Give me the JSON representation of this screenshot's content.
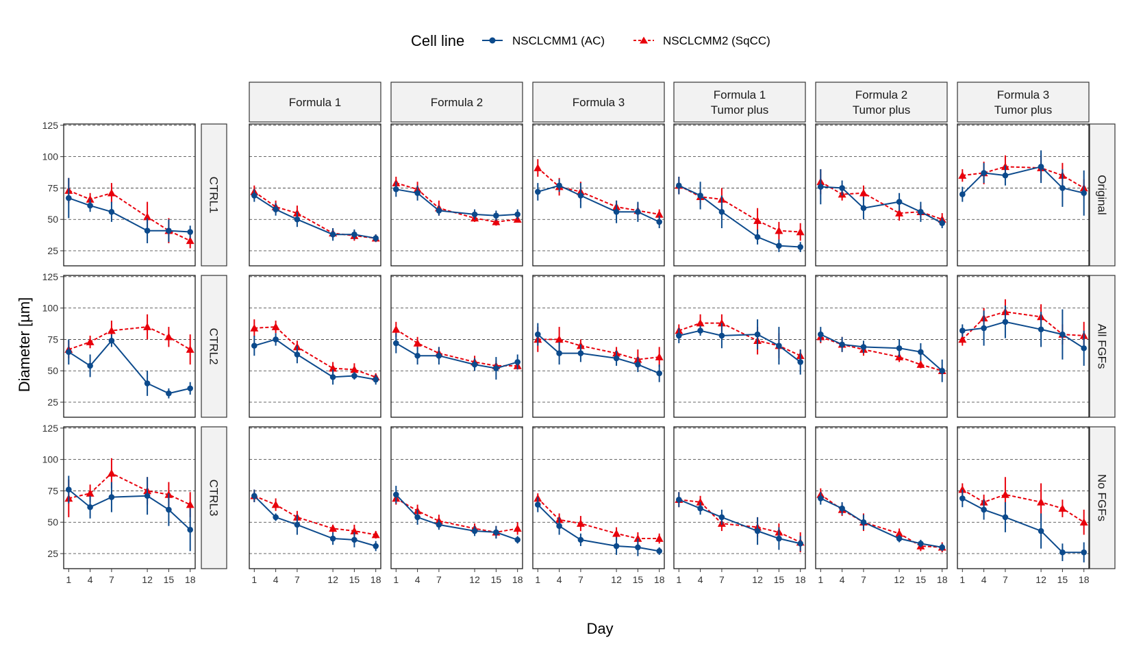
{
  "chart_data": {
    "type": "line",
    "legend": {
      "title": "Cell line",
      "position": "top"
    },
    "series_styles": [
      {
        "name": "NSCLCMM1 (AC)",
        "color": "#0c4a8c",
        "marker": "circle",
        "line": "solid"
      },
      {
        "name": "NSCLCMM2 (SqCC)",
        "color": "#e8000b",
        "marker": "triangle",
        "line": "dashed"
      }
    ],
    "xlabel": "Day",
    "ylabel": "Diameter [µm]",
    "x": [
      1,
      4,
      7,
      12,
      15,
      18
    ],
    "x_ticks": [
      "1",
      "4",
      "7",
      "12",
      "15",
      "18"
    ],
    "y_ticks": [
      "25",
      "50",
      "75",
      "100",
      "125"
    ],
    "ylim": [
      13,
      126
    ],
    "grid": "horizontal dashed",
    "columns": [
      "",
      "Formula 1",
      "Formula 2",
      "Formula 3",
      "Formula 1\nTumor plus",
      "Formula 2\nTumor plus",
      "Formula 3\nTumor plus"
    ],
    "rows": [
      "Original",
      "All FGFs",
      "No FGFs"
    ],
    "control_labels": [
      "CTRL1",
      "CTRL2",
      "CTRL3"
    ],
    "panels": [
      [
        {
          "series": [
            {
              "values": [
                67,
                61,
                56,
                41,
                41,
                40
              ],
              "err": [
                16,
                5,
                8,
                10,
                9,
                5
              ]
            },
            {
              "values": [
                73,
                66,
                71,
                52,
                41,
                33
              ],
              "err": [
                10,
                5,
                8,
                12,
                10,
                6
              ]
            }
          ]
        },
        {
          "series": [
            {
              "values": [
                69,
                58,
                50,
                38,
                38,
                35
              ],
              "err": [
                5,
                5,
                6,
                5,
                4,
                3
              ]
            },
            {
              "values": [
                72,
                60,
                55,
                39,
                37,
                35
              ],
              "err": [
                5,
                5,
                6,
                4,
                4,
                3
              ]
            }
          ]
        },
        {
          "series": [
            {
              "values": [
                74,
                71,
                57,
                54,
                53,
                54
              ],
              "err": [
                6,
                6,
                4,
                4,
                4,
                4
              ]
            },
            {
              "values": [
                79,
                74,
                59,
                51,
                48,
                50
              ],
              "err": [
                5,
                6,
                6,
                3,
                3,
                2
              ]
            }
          ]
        },
        {
          "series": [
            {
              "values": [
                72,
                77,
                69,
                56,
                56,
                48
              ],
              "err": [
                7,
                5,
                10,
                9,
                8,
                5
              ]
            },
            {
              "values": [
                91,
                76,
                72,
                60,
                57,
                54
              ],
              "err": [
                7,
                7,
                8,
                5,
                6,
                4
              ]
            }
          ]
        },
        {
          "series": [
            {
              "values": [
                77,
                69,
                56,
                36,
                29,
                28
              ],
              "err": [
                7,
                11,
                13,
                6,
                5,
                4
              ]
            },
            {
              "values": [
                77,
                68,
                66,
                49,
                41,
                40
              ],
              "err": [
                7,
                5,
                9,
                10,
                7,
                7
              ]
            }
          ]
        },
        {
          "series": [
            {
              "values": [
                76,
                75,
                59,
                64,
                56,
                47
              ],
              "err": [
                14,
                6,
                9,
                7,
                8,
                4
              ]
            },
            {
              "values": [
                80,
                70,
                71,
                55,
                56,
                50
              ],
              "err": [
                10,
                5,
                6,
                6,
                5,
                5
              ]
            }
          ]
        },
        {
          "series": [
            {
              "values": [
                70,
                87,
                85,
                92,
                75,
                71
              ],
              "err": [
                6,
                8,
                8,
                13,
                15,
                18
              ]
            },
            {
              "values": [
                85,
                87,
                92,
                91,
                85,
                75
              ],
              "err": [
                5,
                9,
                9,
                10,
                10,
                7
              ]
            }
          ]
        }
      ],
      [
        {
          "series": [
            {
              "values": [
                65,
                54,
                74,
                40,
                32,
                36
              ],
              "err": [
                10,
                9,
                5,
                10,
                4,
                5
              ]
            },
            {
              "values": [
                67,
                73,
                82,
                85,
                77,
                67
              ],
              "err": [
                7,
                5,
                8,
                10,
                8,
                12
              ]
            }
          ]
        },
        {
          "series": [
            {
              "values": [
                70,
                75,
                63,
                45,
                46,
                43
              ],
              "err": [
                8,
                5,
                7,
                6,
                3,
                4
              ]
            },
            {
              "values": [
                84,
                85,
                69,
                52,
                51,
                45
              ],
              "err": [
                7,
                5,
                5,
                5,
                5,
                3
              ]
            }
          ]
        },
        {
          "series": [
            {
              "values": [
                72,
                62,
                62,
                55,
                52,
                57
              ],
              "err": [
                8,
                7,
                7,
                5,
                9,
                6
              ]
            },
            {
              "values": [
                83,
                72,
                64,
                57,
                54,
                54
              ],
              "err": [
                6,
                5,
                5,
                5,
                4,
                3
              ]
            }
          ]
        },
        {
          "series": [
            {
              "values": [
                79,
                64,
                64,
                60,
                55,
                48
              ],
              "err": [
                9,
                9,
                7,
                6,
                6,
                7
              ]
            },
            {
              "values": [
                75,
                75,
                70,
                64,
                59,
                61
              ],
              "err": [
                10,
                10,
                5,
                5,
                8,
                8
              ]
            }
          ]
        },
        {
          "series": [
            {
              "values": [
                78,
                82,
                78,
                79,
                70,
                57
              ],
              "err": [
                6,
                4,
                10,
                12,
                15,
                10
              ]
            },
            {
              "values": [
                82,
                88,
                88,
                74,
                70,
                62
              ],
              "err": [
                5,
                7,
                7,
                11,
                10,
                5
              ]
            }
          ]
        },
        {
          "series": [
            {
              "values": [
                79,
                71,
                69,
                68,
                65,
                50
              ],
              "err": [
                6,
                6,
                5,
                7,
                7,
                9
              ]
            },
            {
              "values": [
                77,
                71,
                67,
                61,
                55,
                50
              ],
              "err": [
                5,
                6,
                5,
                4,
                3,
                3
              ]
            }
          ]
        },
        {
          "series": [
            {
              "values": [
                82,
                84,
                89,
                83,
                79,
                68
              ],
              "err": [
                5,
                14,
                13,
                14,
                20,
                14
              ]
            },
            {
              "values": [
                75,
                92,
                97,
                93,
                79,
                78
              ],
              "err": [
                5,
                8,
                10,
                10,
                8,
                11
              ]
            }
          ]
        }
      ],
      [
        {
          "series": [
            {
              "values": [
                76,
                62,
                70,
                71,
                60,
                44
              ],
              "err": [
                11,
                9,
                12,
                15,
                13,
                17
              ]
            },
            {
              "values": [
                69,
                73,
                89,
                75,
                72,
                64
              ],
              "err": [
                15,
                7,
                12,
                11,
                10,
                10
              ]
            }
          ]
        },
        {
          "series": [
            {
              "values": [
                71,
                54,
                48,
                37,
                36,
                31
              ],
              "err": [
                5,
                3,
                8,
                5,
                6,
                4
              ]
            },
            {
              "values": [
                71,
                64,
                54,
                45,
                43,
                40
              ],
              "err": [
                5,
                5,
                5,
                3,
                5,
                3
              ]
            }
          ]
        },
        {
          "series": [
            {
              "values": [
                72,
                54,
                48,
                43,
                42,
                36
              ],
              "err": [
                7,
                6,
                4,
                4,
                5,
                3
              ]
            },
            {
              "values": [
                69,
                59,
                51,
                45,
                42,
                45
              ],
              "err": [
                5,
                5,
                5,
                4,
                5,
                5
              ]
            }
          ]
        },
        {
          "series": [
            {
              "values": [
                64,
                47,
                36,
                31,
                30,
                27
              ],
              "err": [
                6,
                7,
                5,
                7,
                7,
                3
              ]
            },
            {
              "values": [
                69,
                52,
                49,
                41,
                37,
                37
              ],
              "err": [
                4,
                5,
                6,
                5,
                5,
                4
              ]
            }
          ]
        },
        {
          "series": [
            {
              "values": [
                68,
                61,
                54,
                43,
                37,
                33
              ],
              "err": [
                6,
                5,
                6,
                11,
                9,
                6
              ]
            },
            {
              "values": [
                68,
                66,
                49,
                46,
                42,
                34
              ],
              "err": [
                6,
                5,
                6,
                8,
                7,
                8
              ]
            }
          ]
        },
        {
          "series": [
            {
              "values": [
                69,
                61,
                50,
                37,
                33,
                30
              ],
              "err": [
                5,
                5,
                6,
                3,
                3,
                3
              ]
            },
            {
              "values": [
                72,
                60,
                50,
                41,
                31,
                30
              ],
              "err": [
                5,
                5,
                7,
                4,
                4,
                4
              ]
            }
          ]
        },
        {
          "series": [
            {
              "values": [
                69,
                60,
                54,
                43,
                26,
                26
              ],
              "err": [
                7,
                8,
                12,
                14,
                7,
                8
              ]
            },
            {
              "values": [
                76,
                66,
                72,
                66,
                61,
                50
              ],
              "err": [
                5,
                6,
                14,
                15,
                7,
                10
              ]
            }
          ]
        }
      ]
    ]
  }
}
